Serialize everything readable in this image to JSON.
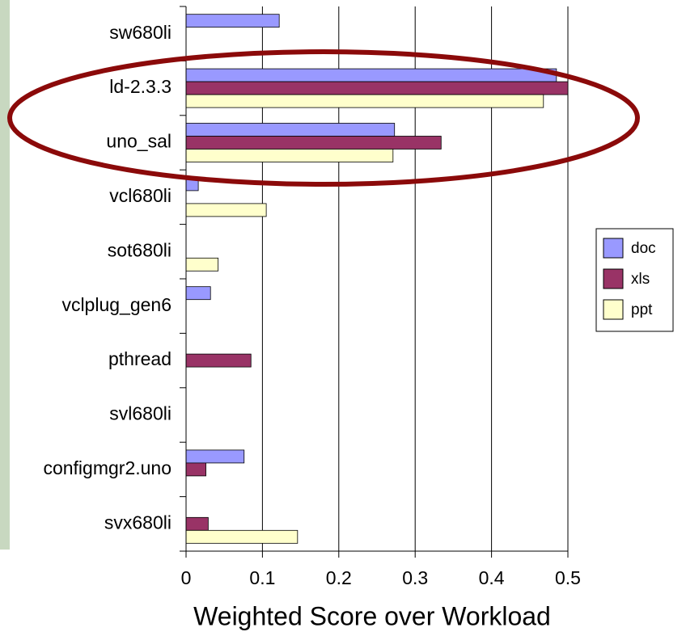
{
  "chart_data": {
    "type": "barh",
    "x_label": "Weighted Score over Workload",
    "categories": [
      "sw680li",
      "ld-2.3.3",
      "uno_sal",
      "vcl680li",
      "sot680li",
      "vclplug_gen6",
      "pthread",
      "svl680li",
      "configmgr2.uno",
      "svx680li"
    ],
    "series": [
      {
        "name": "doc",
        "color": "#9999ff",
        "values": [
          0.122,
          0.485,
          0.273,
          0.016,
          0,
          0.032,
          0,
          0,
          0.076,
          0
        ]
      },
      {
        "name": "xls",
        "color": "#993366",
        "values": [
          0,
          0.5,
          0.334,
          0,
          0,
          0,
          0.085,
          0,
          0.026,
          0.029
        ]
      },
      {
        "name": "ppt",
        "color": "#ffffcc",
        "values": [
          0,
          0.468,
          0.271,
          0.105,
          0.042,
          0,
          0,
          0,
          0,
          0.146
        ]
      }
    ],
    "xlim": [
      0,
      0.5
    ],
    "xticks": [
      0,
      0.1,
      0.2,
      0.3,
      0.4,
      0.5
    ],
    "grid": true,
    "legend": "right"
  }
}
